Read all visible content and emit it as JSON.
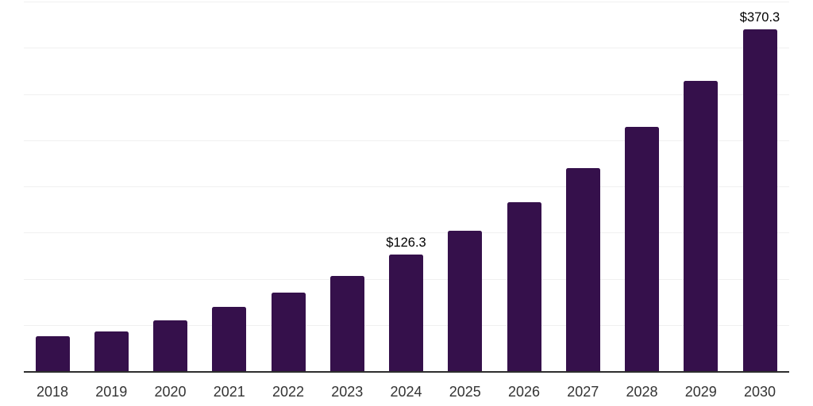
{
  "chart_data": {
    "type": "bar",
    "title": "",
    "xlabel": "",
    "ylabel": "",
    "categories": [
      "2018",
      "2019",
      "2020",
      "2021",
      "2022",
      "2023",
      "2024",
      "2025",
      "2026",
      "2027",
      "2028",
      "2029",
      "2030"
    ],
    "values": [
      37.5,
      43.0,
      55.0,
      69.3,
      84.8,
      102.7,
      126.3,
      152.2,
      182.8,
      220.0,
      264.4,
      313.9,
      370.3
    ],
    "data_labels": {
      "2024": "$126.3",
      "2030": "$370.3"
    },
    "ylim": [
      0,
      400
    ],
    "grid_step": 50,
    "grid": true,
    "legend": false,
    "y_axis_labels_visible": false
  },
  "colors": {
    "bar": "#35104B",
    "axis_line": "#2D2D2D",
    "gridline": "#F0F0F0",
    "tick_label": "#333333",
    "data_label": "#000000",
    "background": "#FFFFFF"
  }
}
